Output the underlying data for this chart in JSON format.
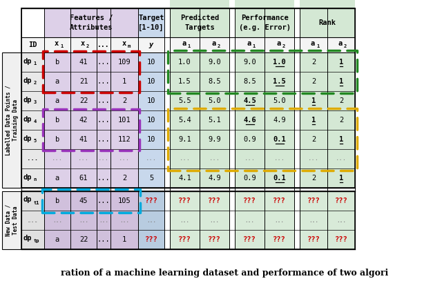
{
  "caption": "ration of a machine learning dataset and performance of two algori",
  "colors": {
    "white": "#ffffff",
    "light_gray": "#e8e8e8",
    "feature_bg": "#ddd0e8",
    "target_bg": "#c8d8ec",
    "right_bg": "#d4e8d4",
    "new_feature_bg": "#d0c0dc",
    "new_target_bg": "#b8cce0",
    "header_row_bg": "#f0f0f0",
    "left_label_bg": "#e8e8e8",
    "red": "#cc0000",
    "green": "#228822",
    "purple": "#9933bb",
    "gold": "#ddaa00",
    "cyan": "#00aadd",
    "black": "#000000"
  },
  "training_data": [
    [
      "dp",
      "1",
      "b",
      "41",
      "...",
      "109",
      "10",
      "1.0",
      "9.0",
      "9.0",
      "1.0",
      "2",
      "1",
      [
        9,
        11
      ]
    ],
    [
      "dp",
      "2",
      "a",
      "21",
      "...",
      "1",
      "10",
      "1.5",
      "8.5",
      "8.5",
      "1.5",
      "2",
      "1",
      [
        9,
        11
      ]
    ],
    [
      "dp",
      "3",
      "a",
      "22",
      "...",
      "2",
      "10",
      "5.5",
      "5.0",
      "4.5",
      "5.0",
      "1",
      "2",
      [
        8,
        10
      ]
    ],
    [
      "dp",
      "4",
      "b",
      "42",
      "...",
      "101",
      "10",
      "5.4",
      "5.1",
      "4.6",
      "4.9",
      "1",
      "2",
      [
        8,
        10
      ]
    ],
    [
      "dp",
      "5",
      "b",
      "41",
      "...",
      "112",
      "10",
      "9.1",
      "9.9",
      "0.9",
      "0.1",
      "2",
      "1",
      [
        9,
        11
      ]
    ],
    [
      "...",
      "",
      "...",
      "...",
      "...",
      "...",
      "...",
      "...",
      "...",
      "...",
      "...",
      "...",
      "...",
      []
    ],
    [
      "dp",
      "n",
      "a",
      "61",
      "...",
      "2",
      "5",
      "4.1",
      "4.9",
      "0.9",
      "0.1",
      "2",
      "1",
      [
        9,
        11
      ]
    ]
  ],
  "new_data": [
    [
      "dp",
      "t1",
      "b",
      "45",
      "...",
      "105",
      "???",
      "???",
      "???",
      "???",
      "???",
      "???",
      "???",
      []
    ],
    [
      "...",
      "",
      "...",
      "...",
      "...",
      "...",
      "...",
      "...",
      "...",
      "...",
      "...",
      "...",
      "...",
      []
    ],
    [
      "dp",
      "tp",
      "a",
      "22",
      "...",
      "1",
      "???",
      "???",
      "???",
      "???",
      "???",
      "???",
      "???",
      []
    ]
  ]
}
